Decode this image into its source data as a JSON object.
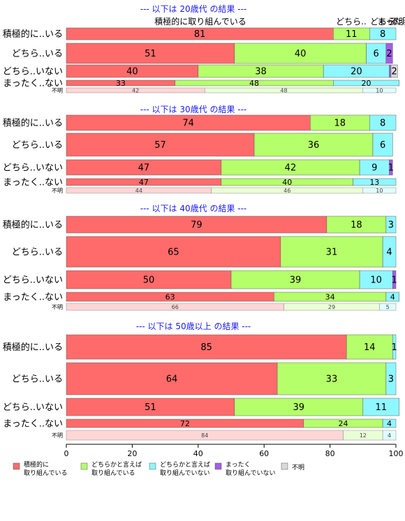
{
  "chart_data": {
    "type": "bar",
    "orientation": "horizontal",
    "stacked": "percent",
    "xlim": [
      0,
      100
    ],
    "xticks": [
      "0",
      "20",
      "40",
      "60",
      "80",
      "100"
    ],
    "colors": [
      "#ff6b6b",
      "#b5ff6b",
      "#8ff7ff",
      "#a35ee6",
      "#d9d9d9"
    ],
    "legend": {
      "position": "bottom",
      "items": [
        {
          "line1": "積極的に",
          "line2": "取り組んでいる"
        },
        {
          "line1": "どちらかと言えば",
          "line2": "取り組んでいる"
        },
        {
          "line1": "どちらかと言えば",
          "line2": "取り組んでいない"
        },
        {
          "line1": "まったく",
          "line2": "取り組んでいない"
        },
        {
          "line1": "不明",
          "line2": ""
        }
      ]
    },
    "header_labels": [
      "積極的に取り組んでいる",
      "どちら..",
      "どちら..",
      "まった..",
      "不明"
    ],
    "panels": [
      {
        "title": "--- 以下は 20歳代 の結果 ---",
        "rows": [
          {
            "label": "積極的に..いる",
            "values": [
              81,
              11,
              8,
              0,
              0
            ],
            "shown": [
              "81",
              "11",
              "8",
              "",
              ""
            ]
          },
          {
            "label": "どちら..いる",
            "values": [
              51,
              40,
              6,
              2,
              0
            ],
            "shown": [
              "51",
              "40",
              "6",
              "2",
              ""
            ]
          },
          {
            "label": "どちら..いない",
            "values": [
              40,
              38,
              20,
              0.5,
              2
            ],
            "shown": [
              "40",
              "38",
              "20",
              "",
              "2"
            ]
          },
          {
            "label": "まったく..ない",
            "values": [
              33,
              48,
              20,
              0,
              0
            ],
            "shown": [
              "33",
              "48",
              "20",
              "",
              ""
            ]
          },
          {
            "label": "不明",
            "values": [
              42,
              48,
              10,
              0,
              0
            ],
            "shown": [
              "42",
              "48",
              "10",
              "",
              ""
            ]
          }
        ]
      },
      {
        "title": "--- 以下は 30歳代 の結果 ---",
        "rows": [
          {
            "label": "積極的に..いる",
            "values": [
              74,
              18,
              8,
              0,
              0
            ],
            "shown": [
              "74",
              "18",
              "8",
              "",
              ""
            ]
          },
          {
            "label": "どちら..いる",
            "values": [
              57,
              36,
              6,
              0,
              0
            ],
            "shown": [
              "57",
              "36",
              "6",
              "",
              ""
            ]
          },
          {
            "label": "どちら..いない",
            "values": [
              47,
              42,
              9,
              1,
              0
            ],
            "shown": [
              "47",
              "42",
              "9",
              "1",
              ""
            ]
          },
          {
            "label": "まったく..ない",
            "values": [
              47,
              40,
              13,
              0,
              0
            ],
            "shown": [
              "47",
              "40",
              "13",
              "",
              ""
            ]
          },
          {
            "label": "不明",
            "values": [
              44,
              46,
              10,
              0,
              0
            ],
            "shown": [
              "44",
              "46",
              "10",
              "",
              ""
            ]
          }
        ]
      },
      {
        "title": "--- 以下は 40歳代 の結果 ---",
        "rows": [
          {
            "label": "積極的に..いる",
            "values": [
              79,
              18,
              3,
              0,
              0
            ],
            "shown": [
              "79",
              "18",
              "3",
              "",
              ""
            ]
          },
          {
            "label": "どちら..いる",
            "values": [
              65,
              31,
              4,
              0,
              0
            ],
            "shown": [
              "65",
              "31",
              "4",
              "",
              ""
            ]
          },
          {
            "label": "どちら..いない",
            "values": [
              50,
              39,
              10,
              1,
              0
            ],
            "shown": [
              "50",
              "39",
              "10",
              "1",
              ""
            ]
          },
          {
            "label": "まったく..ない",
            "values": [
              63,
              34,
              4,
              0,
              0
            ],
            "shown": [
              "63",
              "34",
              "4",
              "",
              ""
            ]
          },
          {
            "label": "不明",
            "values": [
              66,
              29,
              5,
              0,
              0
            ],
            "shown": [
              "66",
              "29",
              "5",
              "",
              ""
            ]
          }
        ]
      },
      {
        "title": "--- 以下は 50歳以上 の結果 ---",
        "rows": [
          {
            "label": "積極的に..いる",
            "values": [
              85,
              14,
              1,
              0,
              0
            ],
            "shown": [
              "85",
              "14",
              "1",
              "",
              ""
            ]
          },
          {
            "label": "どちら..いる",
            "values": [
              64,
              33,
              3,
              0,
              0
            ],
            "shown": [
              "64",
              "33",
              "3",
              "",
              ""
            ]
          },
          {
            "label": "どちら..いない",
            "values": [
              51,
              39,
              11,
              0,
              0
            ],
            "shown": [
              "51",
              "39",
              "11",
              "",
              ""
            ]
          },
          {
            "label": "まったく..ない",
            "values": [
              72,
              24,
              4,
              0,
              0
            ],
            "shown": [
              "72",
              "24",
              "4",
              "",
              ""
            ]
          },
          {
            "label": "不明",
            "values": [
              84,
              12,
              4,
              0,
              0
            ],
            "shown": [
              "84",
              "12",
              "4",
              "",
              ""
            ]
          }
        ]
      }
    ]
  }
}
